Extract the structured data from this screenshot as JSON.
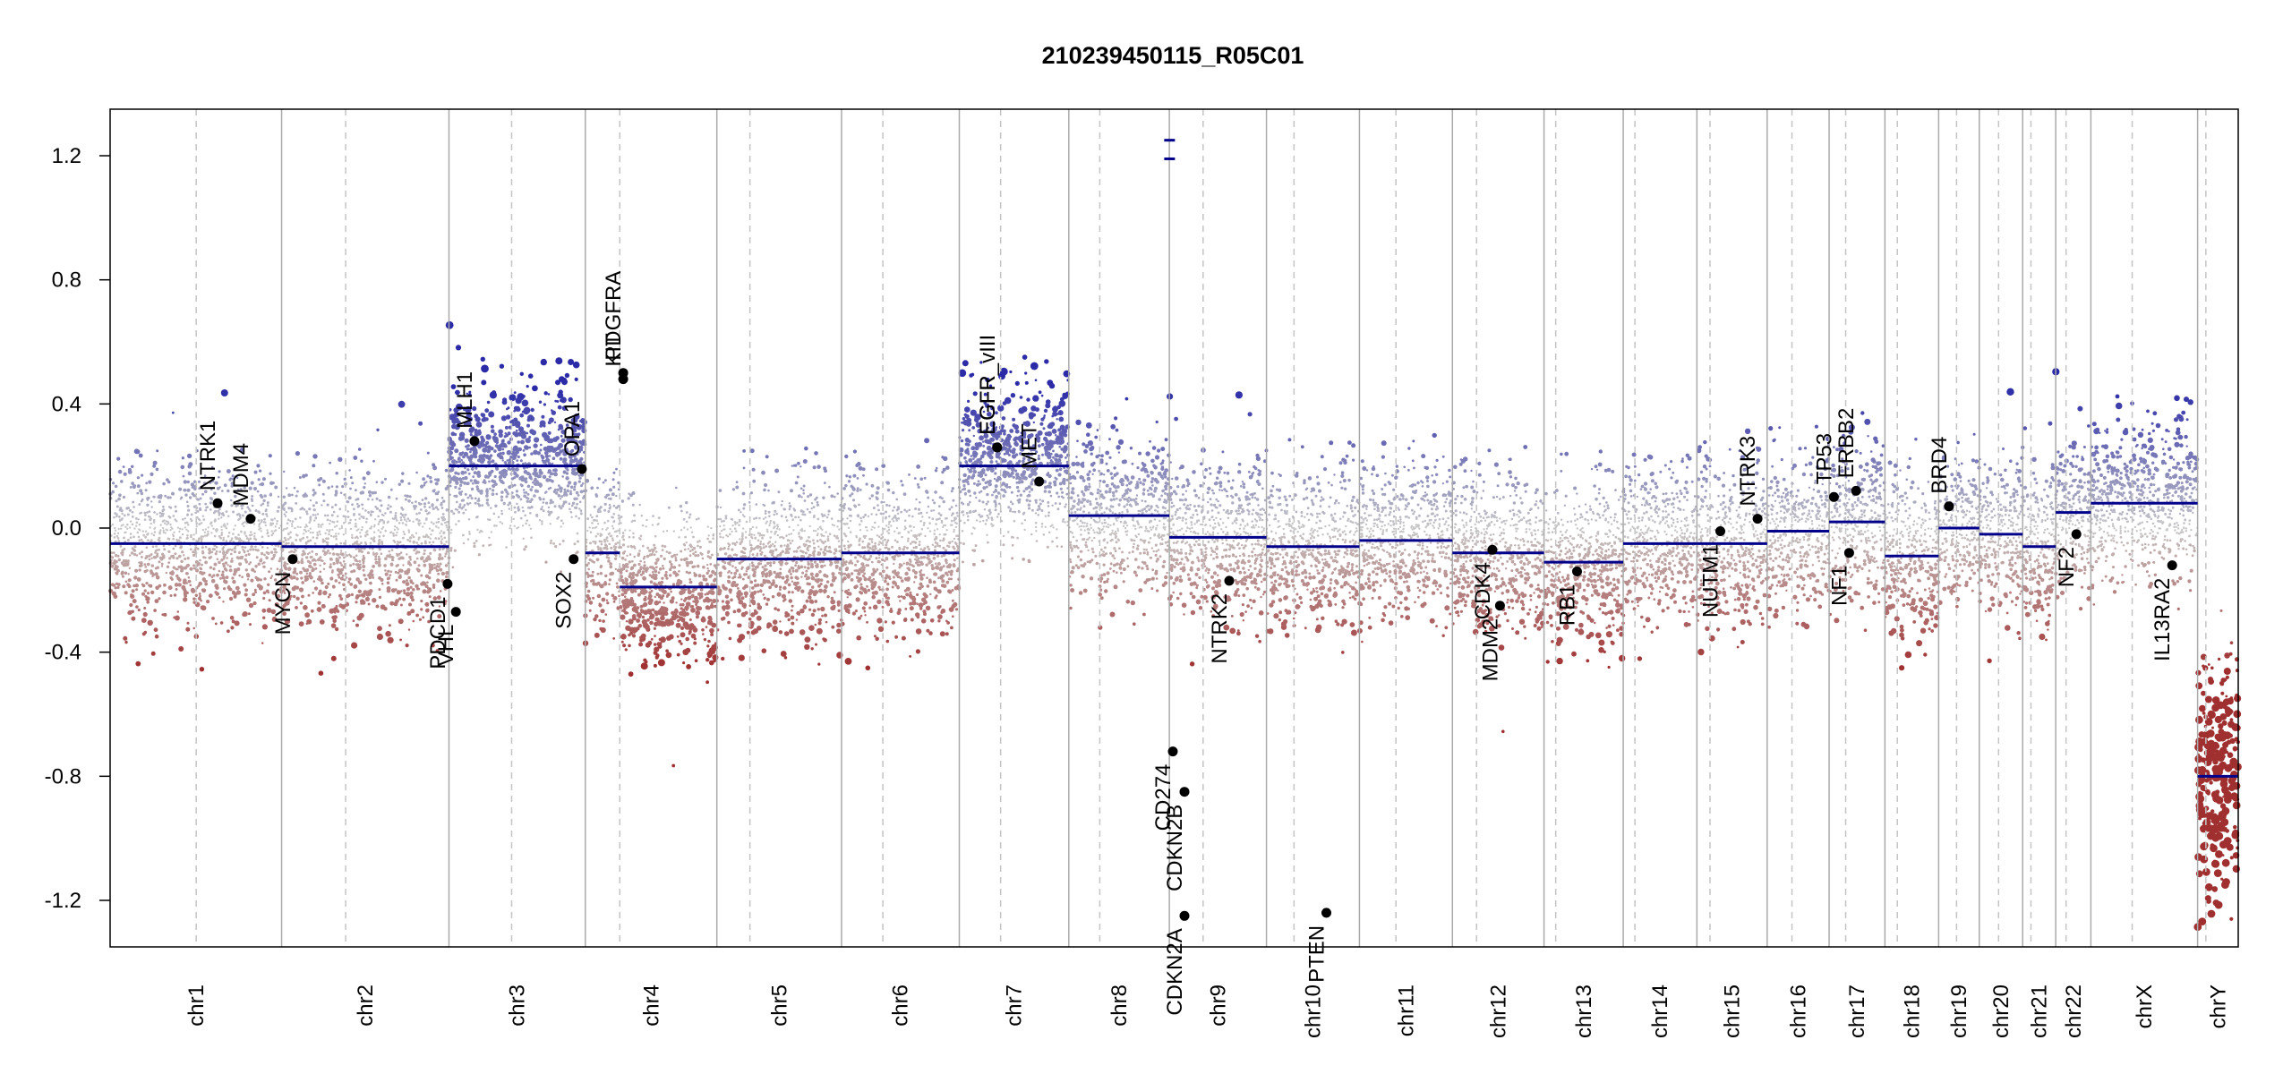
{
  "chart_data": {
    "type": "scatter",
    "title": "210239450115_R05C01",
    "xlabel": "",
    "ylabel": "",
    "ylim": [
      -1.35,
      1.35
    ],
    "yticks": [
      -1.2,
      -0.8,
      -0.4,
      0.0,
      0.4,
      0.8,
      1.2
    ],
    "ytick_labels": [
      "-1.2",
      "-0.8",
      "-0.4",
      "0.0",
      "0.4",
      "0.8",
      "1.2"
    ],
    "colors": {
      "gain": "#2b2ba8",
      "neutral": "#c8c8c8",
      "loss": "#a03030",
      "segment": "#00008b",
      "boundary": "#aaaaaa"
    },
    "chromosomes": [
      {
        "name": "chr1",
        "length": 249,
        "centromere": 125
      },
      {
        "name": "chr2",
        "length": 243,
        "centromere": 93
      },
      {
        "name": "chr3",
        "length": 198,
        "centromere": 91
      },
      {
        "name": "chr4",
        "length": 191,
        "centromere": 50
      },
      {
        "name": "chr5",
        "length": 181,
        "centromere": 48
      },
      {
        "name": "chr6",
        "length": 171,
        "centromere": 60
      },
      {
        "name": "chr7",
        "length": 159,
        "centromere": 60
      },
      {
        "name": "chr8",
        "length": 146,
        "centromere": 45
      },
      {
        "name": "chr9",
        "length": 141,
        "centromere": 49
      },
      {
        "name": "chr10",
        "length": 135,
        "centromere": 40
      },
      {
        "name": "chr11",
        "length": 135,
        "centromere": 53
      },
      {
        "name": "chr12",
        "length": 133,
        "centromere": 35
      },
      {
        "name": "chr13",
        "length": 115,
        "centromere": 17
      },
      {
        "name": "chr14",
        "length": 107,
        "centromere": 17
      },
      {
        "name": "chr15",
        "length": 102,
        "centromere": 19
      },
      {
        "name": "chr16",
        "length": 90,
        "centromere": 36
      },
      {
        "name": "chr17",
        "length": 81,
        "centromere": 24
      },
      {
        "name": "chr18",
        "length": 78,
        "centromere": 18
      },
      {
        "name": "chr19",
        "length": 59,
        "centromere": 26
      },
      {
        "name": "chr20",
        "length": 63,
        "centromere": 28
      },
      {
        "name": "chr21",
        "length": 48,
        "centromere": 12
      },
      {
        "name": "chr22",
        "length": 51,
        "centromere": 15
      },
      {
        "name": "chrX",
        "length": 155,
        "centromere": 60
      },
      {
        "name": "chrY",
        "length": 59,
        "centromere": 12
      }
    ],
    "segments": [
      {
        "chrom": "chr1",
        "start": 0,
        "end": 249,
        "value": -0.05
      },
      {
        "chrom": "chr2",
        "start": 0,
        "end": 243,
        "value": -0.06
      },
      {
        "chrom": "chr3",
        "start": 0,
        "end": 198,
        "value": 0.2
      },
      {
        "chrom": "chr4",
        "start": 0,
        "end": 50,
        "value": -0.08
      },
      {
        "chrom": "chr4",
        "start": 50,
        "end": 191,
        "value": -0.19
      },
      {
        "chrom": "chr5",
        "start": 0,
        "end": 181,
        "value": -0.1
      },
      {
        "chrom": "chr6",
        "start": 0,
        "end": 171,
        "value": -0.08
      },
      {
        "chrom": "chr7",
        "start": 0,
        "end": 159,
        "value": 0.2
      },
      {
        "chrom": "chr8",
        "start": 0,
        "end": 146,
        "value": 0.04
      },
      {
        "chrom": "chr9",
        "start": 0,
        "end": 141,
        "value": -0.03
      },
      {
        "chrom": "chr10",
        "start": 0,
        "end": 135,
        "value": -0.06
      },
      {
        "chrom": "chr11",
        "start": 0,
        "end": 135,
        "value": -0.04
      },
      {
        "chrom": "chr12",
        "start": 0,
        "end": 133,
        "value": -0.08
      },
      {
        "chrom": "chr13",
        "start": 0,
        "end": 115,
        "value": -0.11
      },
      {
        "chrom": "chr14",
        "start": 0,
        "end": 107,
        "value": -0.05
      },
      {
        "chrom": "chr15",
        "start": 0,
        "end": 102,
        "value": -0.05
      },
      {
        "chrom": "chr16",
        "start": 0,
        "end": 90,
        "value": -0.01
      },
      {
        "chrom": "chr17",
        "start": 0,
        "end": 81,
        "value": 0.02
      },
      {
        "chrom": "chr18",
        "start": 0,
        "end": 78,
        "value": -0.09
      },
      {
        "chrom": "chr19",
        "start": 0,
        "end": 59,
        "value": 0.0
      },
      {
        "chrom": "chr20",
        "start": 0,
        "end": 63,
        "value": -0.02
      },
      {
        "chrom": "chr21",
        "start": 0,
        "end": 48,
        "value": -0.06
      },
      {
        "chrom": "chr22",
        "start": 0,
        "end": 51,
        "value": 0.05
      },
      {
        "chrom": "chrX",
        "start": 0,
        "end": 155,
        "value": 0.08
      },
      {
        "chrom": "chrY",
        "start": 0,
        "end": 59,
        "value": -0.8
      }
    ],
    "special_segments": [
      {
        "chrom": "chr9",
        "pos": 0.3,
        "value": 1.25
      },
      {
        "chrom": "chr9",
        "pos": 0.3,
        "value": 1.19
      }
    ],
    "genes": [
      {
        "name": "NTRK1",
        "chrom": "chr1",
        "pos": 156,
        "value": 0.08
      },
      {
        "name": "MDM4",
        "chrom": "chr1",
        "pos": 204,
        "value": 0.03
      },
      {
        "name": "MYCN",
        "chrom": "chr2",
        "pos": 16,
        "value": -0.1
      },
      {
        "name": "PDCD1",
        "chrom": "chr2",
        "pos": 241,
        "value": -0.18
      },
      {
        "name": "VHL",
        "chrom": "chr3",
        "pos": 10,
        "value": -0.27
      },
      {
        "name": "MLH1",
        "chrom": "chr3",
        "pos": 37,
        "value": 0.28
      },
      {
        "name": "SOX2",
        "chrom": "chr3",
        "pos": 181,
        "value": -0.1
      },
      {
        "name": "OPA1",
        "chrom": "chr3",
        "pos": 193,
        "value": 0.19
      },
      {
        "name": "PDGFRA",
        "chrom": "chr4",
        "pos": 55,
        "value": 0.5
      },
      {
        "name": "KIT",
        "chrom": "chr4",
        "pos": 55,
        "value": 0.48
      },
      {
        "name": "EGFR",
        "chrom": "chr7",
        "pos": 55,
        "value": 0.26
      },
      {
        "name": "EGFR_vIII",
        "chrom": "chr7",
        "pos": 55,
        "value": 0.26
      },
      {
        "name": "MET",
        "chrom": "chr7",
        "pos": 116,
        "value": 0.15
      },
      {
        "name": "CD274",
        "chrom": "chr9",
        "pos": 5,
        "value": -0.72
      },
      {
        "name": "CDKN2A",
        "chrom": "chr9",
        "pos": 22,
        "value": -1.25
      },
      {
        "name": "CDKN2B",
        "chrom": "chr9",
        "pos": 22,
        "value": -0.85
      },
      {
        "name": "NTRK2",
        "chrom": "chr9",
        "pos": 87,
        "value": -0.17
      },
      {
        "name": "PTEN",
        "chrom": "chr10",
        "pos": 87,
        "value": -1.24
      },
      {
        "name": "MDM2",
        "chrom": "chr12",
        "pos": 69,
        "value": -0.25
      },
      {
        "name": "CDK4",
        "chrom": "chr12",
        "pos": 58,
        "value": -0.07
      },
      {
        "name": "RB1",
        "chrom": "chr13",
        "pos": 48,
        "value": -0.14
      },
      {
        "name": "NUTM1",
        "chrom": "chr15",
        "pos": 34,
        "value": -0.01
      },
      {
        "name": "NTRK3",
        "chrom": "chr15",
        "pos": 88,
        "value": 0.03
      },
      {
        "name": "TP53",
        "chrom": "chr17",
        "pos": 7,
        "value": 0.1
      },
      {
        "name": "NF1",
        "chrom": "chr17",
        "pos": 29,
        "value": -0.08
      },
      {
        "name": "ERBB2",
        "chrom": "chr17",
        "pos": 39,
        "value": 0.12
      },
      {
        "name": "BRD4",
        "chrom": "chr19",
        "pos": 15,
        "value": 0.07
      },
      {
        "name": "NF2",
        "chrom": "chr22",
        "pos": 30,
        "value": -0.02
      },
      {
        "name": "IL13RA2",
        "chrom": "chrX",
        "pos": 118,
        "value": -0.12
      }
    ]
  }
}
